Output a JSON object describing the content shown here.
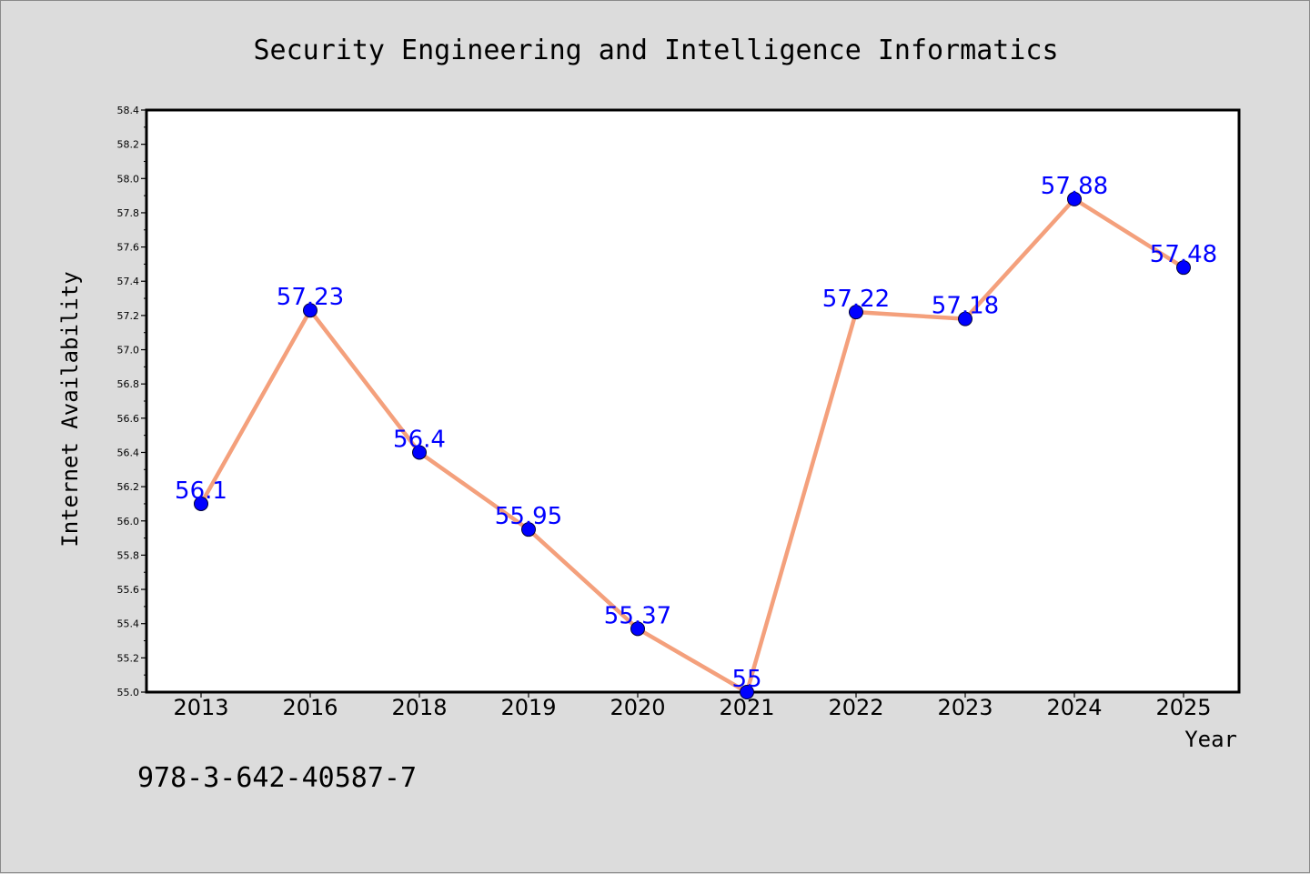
{
  "chart_data": {
    "type": "line",
    "title": "Security Engineering and Intelligence Informatics",
    "xlabel": "Year",
    "ylabel": "Internet Availability",
    "categories": [
      "2013",
      "2016",
      "2018",
      "2019",
      "2020",
      "2021",
      "2022",
      "2023",
      "2024",
      "2025"
    ],
    "series": [
      {
        "values": [
          56.1,
          57.23,
          56.4,
          55.95,
          55.37,
          55,
          57.22,
          57.18,
          57.88,
          57.48
        ]
      }
    ],
    "data_labels": [
      "56.1",
      "57.23",
      "56.4",
      "55.95",
      "55.37",
      "55",
      "57.22",
      "57.18",
      "57.88",
      "57.48"
    ],
    "ylim": [
      55.0,
      58.4
    ],
    "yticks": [
      "55.0",
      "55.2",
      "55.4",
      "55.6",
      "55.8",
      "56.0",
      "56.2",
      "56.4",
      "56.6",
      "56.8",
      "57.0",
      "57.2",
      "57.4",
      "57.6",
      "57.8",
      "58.0",
      "58.2",
      "58.4"
    ],
    "grid": false,
    "line_color": "#f4a07c",
    "marker_color": "#0000ff",
    "label_color": "#0000ff"
  },
  "footer": {
    "isbn": "978-3-642-40587-7"
  }
}
